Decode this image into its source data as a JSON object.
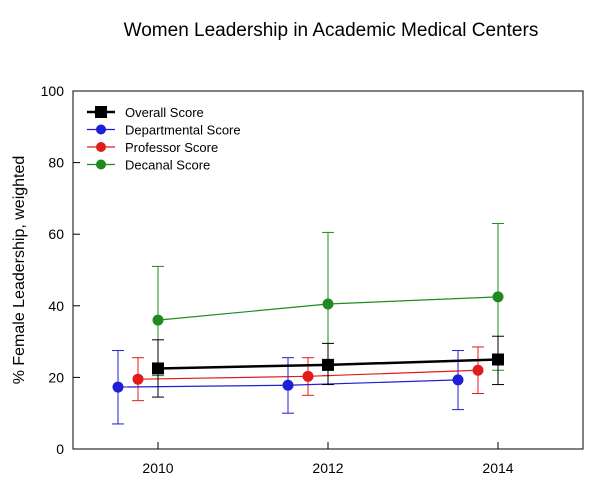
{
  "chart_data": {
    "type": "line",
    "title": "Women Leadership in Academic Medical Centers",
    "xlabel": "",
    "ylabel": "% Female Leadership, weighted",
    "x": [
      2010,
      2012,
      2014
    ],
    "xlim": [
      2009,
      2015
    ],
    "ylim": [
      0,
      100
    ],
    "yticks": [
      0,
      20,
      40,
      60,
      80,
      100
    ],
    "grid": false,
    "legend_position": "top-left",
    "series": [
      {
        "name": "Overall Score",
        "color": "#000000",
        "marker": "square",
        "values": [
          22.5,
          23.5,
          25.0
        ],
        "error_low": [
          14.5,
          18.0,
          18.0
        ],
        "error_high": [
          30.5,
          29.5,
          31.5
        ]
      },
      {
        "name": "Departmental Score",
        "color": "#1f1fd6",
        "marker": "circle",
        "values": [
          17.3,
          17.8,
          19.3
        ],
        "error_low": [
          7.0,
          10.0,
          11.0
        ],
        "error_high": [
          27.5,
          25.5,
          27.5
        ]
      },
      {
        "name": "Professor Score",
        "color": "#e01c1c",
        "marker": "circle",
        "values": [
          19.5,
          20.3,
          22.0
        ],
        "error_low": [
          13.5,
          15.0,
          15.5
        ],
        "error_high": [
          25.5,
          25.5,
          28.5
        ]
      },
      {
        "name": "Decanal Score",
        "color": "#1f8a1f",
        "marker": "circle",
        "values": [
          36.0,
          40.5,
          42.5
        ],
        "error_low": [
          20.5,
          20.5,
          22.0
        ],
        "error_high": [
          51.0,
          60.5,
          63.0
        ]
      }
    ]
  }
}
